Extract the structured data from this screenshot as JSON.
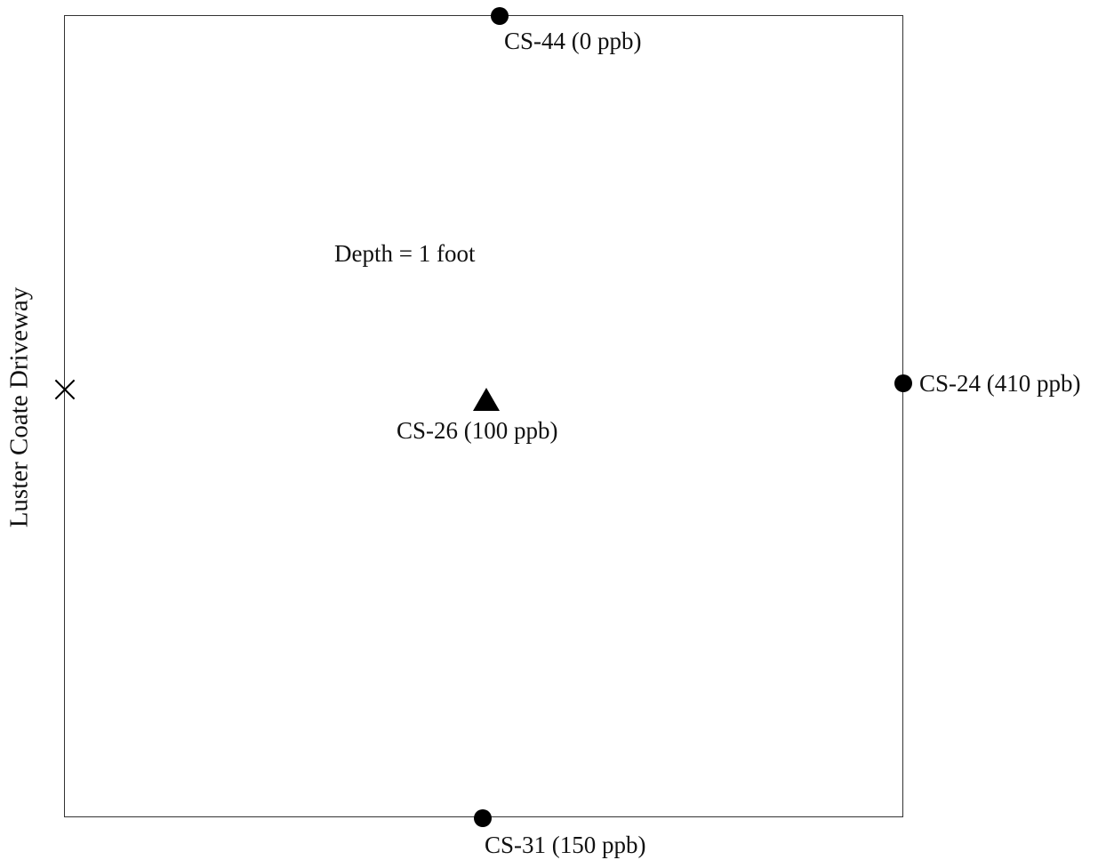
{
  "diagram": {
    "depth_note": "Depth = 1 foot",
    "driveway_label": "Luster Coate Driveway",
    "colors": {
      "boundary": "#333333",
      "marker": "#000000",
      "text": "#111111"
    },
    "samples": [
      {
        "id": "CS-44",
        "label": "CS-44 (0 ppb)",
        "concentration_ppb": 0,
        "marker": "circle"
      },
      {
        "id": "CS-24",
        "label": "CS-24 (410 ppb)",
        "concentration_ppb": 410,
        "marker": "circle"
      },
      {
        "id": "CS-26",
        "label": "CS-26 (100 ppb)",
        "concentration_ppb": 100,
        "marker": "triangle"
      },
      {
        "id": "CS-31",
        "label": "CS-31 (150 ppb)",
        "concentration_ppb": 150,
        "marker": "circle"
      }
    ],
    "reference_marker": "x-icon"
  }
}
